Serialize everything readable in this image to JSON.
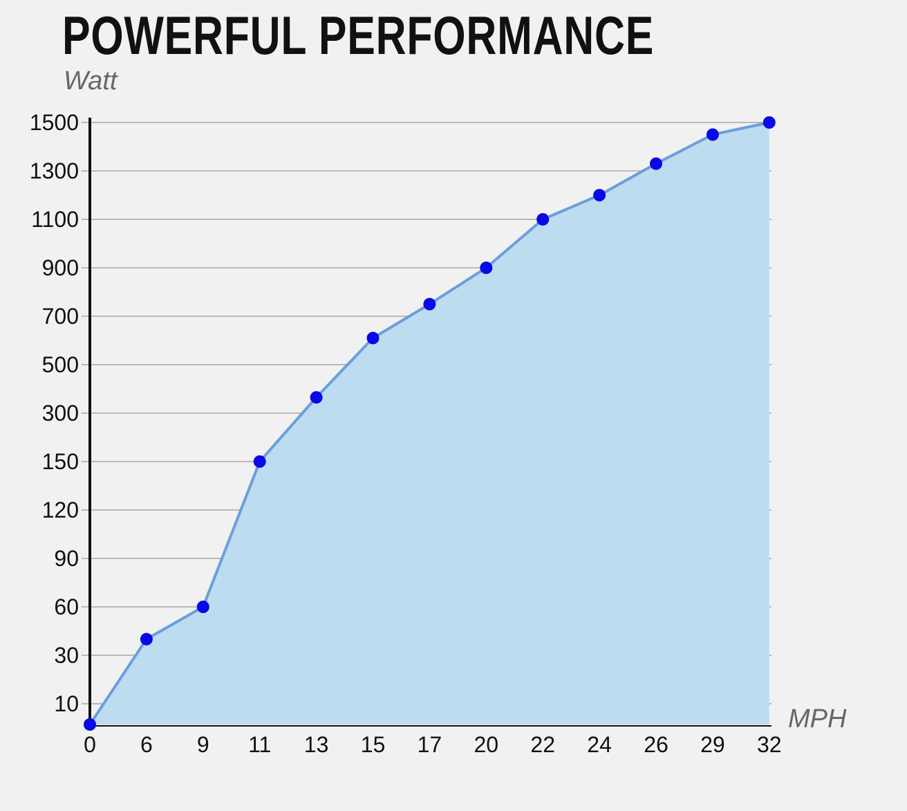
{
  "title": "POWERFUL PERFORMANCE",
  "chart_data": {
    "type": "area",
    "title": "POWERFUL PERFORMANCE",
    "xlabel": "MPH",
    "ylabel": "Watt",
    "categories": [
      "0",
      "6",
      "9",
      "11",
      "13",
      "15",
      "17",
      "20",
      "22",
      "24",
      "26",
      "29",
      "32"
    ],
    "y_tick_labels": [
      10,
      30,
      60,
      90,
      120,
      150,
      300,
      500,
      700,
      900,
      1100,
      1300,
      1500
    ],
    "y_scale": "non-uniform (equally spaced tick labels)",
    "ylim": [
      0,
      1500
    ],
    "grid": true,
    "series": [
      {
        "values": [
          0,
          40,
          60,
          150,
          365,
          610,
          750,
          900,
          1100,
          1200,
          1330,
          1450,
          1500
        ]
      }
    ],
    "colors": {
      "line": "#6a9fdb",
      "fill": "#bedcf0",
      "marker": "#0a0ae6",
      "grid": "#999999",
      "axis": "#111111"
    }
  }
}
